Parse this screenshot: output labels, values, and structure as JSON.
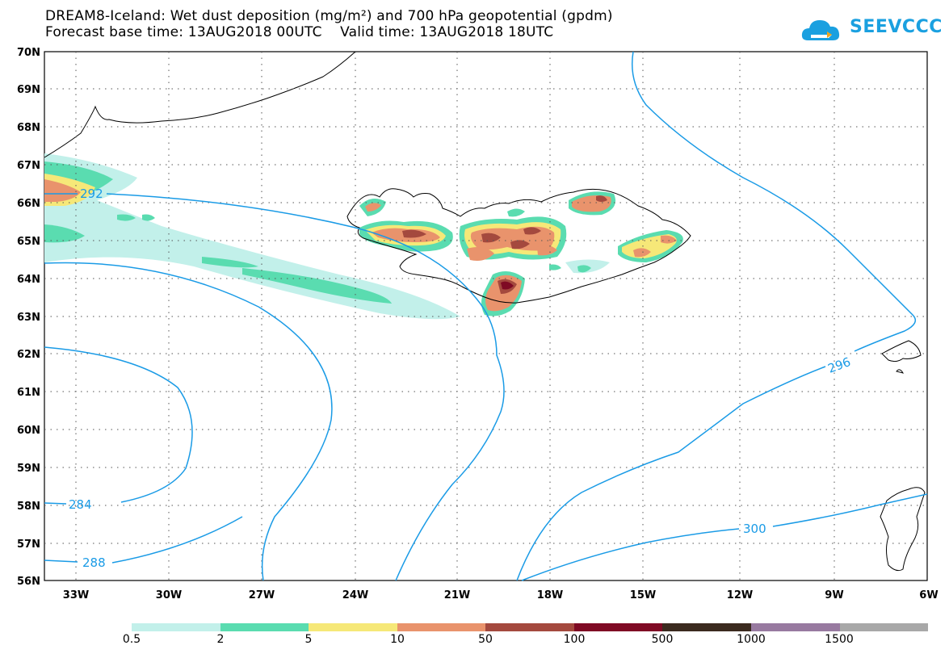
{
  "header": {
    "title_line1": "DREAM8-Iceland: Wet dust deposition (mg/m²) and 700 hPa geopotential (gpdm)",
    "title_line2": "Forecast base time: 13AUG2018 00UTC    Valid time: 13AUG2018 18UTC"
  },
  "logo": {
    "text": "SEEVCCC",
    "icon": "cloud-icon",
    "color": "#1aa0e0"
  },
  "map": {
    "lat_labels": [
      "70N",
      "69N",
      "68N",
      "67N",
      "66N",
      "65N",
      "64N",
      "63N",
      "62N",
      "61N",
      "60N",
      "59N",
      "58N",
      "57N",
      "56N"
    ],
    "lon_labels": [
      "33W",
      "30W",
      "27W",
      "24W",
      "21W",
      "18W",
      "15W",
      "12W",
      "9W",
      "6W"
    ],
    "contour_labels": [
      "292",
      "296",
      "284",
      "300",
      "288"
    ],
    "contour_color": "#1a9be6"
  },
  "legend": {
    "colors": [
      "#c2f0ea",
      "#5adcb0",
      "#f6e878",
      "#e9936c",
      "#a4493e",
      "#7f0a24",
      "#3b2a1f",
      "#987aa0",
      "#a8a8a8"
    ],
    "labels": [
      "0.5",
      "2",
      "5",
      "10",
      "50",
      "100",
      "500",
      "1000",
      "1500"
    ]
  }
}
